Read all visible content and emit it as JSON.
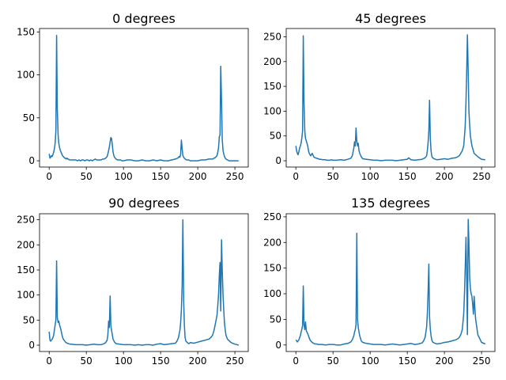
{
  "figure": {
    "background": "#ffffff",
    "line_color": "#1f77b4"
  },
  "chart_data": [
    {
      "type": "line",
      "title": "0 degrees",
      "xlim": [
        -13,
        268
      ],
      "ylim": [
        -7.3,
        154
      ],
      "xticks": [
        0,
        50,
        100,
        150,
        200,
        250
      ],
      "yticks": [
        0,
        50,
        100,
        150
      ],
      "series": [
        {
          "x": [
            0,
            1,
            2,
            3,
            4,
            5,
            6,
            7,
            8,
            9,
            10,
            11,
            12,
            13,
            14,
            15,
            16,
            17,
            18,
            19,
            20,
            21,
            22,
            23,
            24,
            25,
            26,
            27,
            28,
            29,
            30,
            32,
            34,
            36,
            38,
            40,
            42,
            44,
            46,
            48,
            50,
            52,
            54,
            56,
            58,
            60,
            62,
            64,
            66,
            68,
            70,
            72,
            74,
            76,
            78,
            79,
            80,
            81,
            82,
            83,
            84,
            85,
            86,
            87,
            88,
            89,
            90,
            92,
            94,
            96,
            98,
            100,
            105,
            110,
            115,
            120,
            125,
            130,
            135,
            140,
            145,
            150,
            155,
            160,
            165,
            170,
            173,
            175,
            176,
            177,
            178,
            179,
            180,
            181,
            182,
            183,
            185,
            188,
            190,
            195,
            200,
            205,
            210,
            215,
            218,
            220,
            222,
            224,
            226,
            227,
            228,
            229,
            230,
            231,
            232,
            233,
            234,
            235,
            236,
            237,
            238,
            240,
            242,
            245,
            250,
            255
          ],
          "y": [
            8,
            3,
            4,
            6,
            5,
            7,
            10,
            14,
            20,
            35,
            146,
            60,
            30,
            20,
            15,
            12,
            10,
            8,
            6,
            5,
            4,
            3,
            3,
            2,
            3,
            2,
            2,
            1,
            1,
            1,
            1,
            1,
            1,
            1,
            0,
            1,
            0,
            1,
            1,
            0,
            1,
            1,
            0,
            1,
            0,
            1,
            2,
            1,
            1,
            1,
            1,
            2,
            2,
            3,
            5,
            8,
            12,
            16,
            22,
            27,
            26,
            18,
            10,
            6,
            4,
            3,
            2,
            1,
            1,
            1,
            0,
            0,
            1,
            1,
            0,
            0,
            1,
            0,
            0,
            1,
            0,
            1,
            0,
            0,
            1,
            2,
            3,
            5,
            4,
            8,
            24,
            14,
            6,
            4,
            3,
            2,
            1,
            1,
            0,
            0,
            0,
            1,
            1,
            2,
            2,
            2,
            3,
            4,
            6,
            10,
            15,
            28,
            30,
            110,
            70,
            25,
            12,
            8,
            5,
            3,
            2,
            1,
            0,
            0,
            0,
            0
          ]
        }
      ]
    },
    {
      "type": "line",
      "title": "45 degrees",
      "xlim": [
        -13,
        268
      ],
      "ylim": [
        -12.7,
        266.7
      ],
      "xticks": [
        0,
        50,
        100,
        150,
        200,
        250
      ],
      "yticks": [
        0,
        50,
        100,
        150,
        200,
        250
      ],
      "series": [
        {
          "x": [
            0,
            1,
            2,
            3,
            4,
            5,
            6,
            7,
            8,
            9,
            10,
            11,
            12,
            13,
            14,
            15,
            16,
            17,
            18,
            19,
            20,
            22,
            24,
            26,
            28,
            30,
            32,
            34,
            36,
            38,
            40,
            42,
            44,
            46,
            48,
            50,
            55,
            60,
            65,
            70,
            74,
            76,
            78,
            79,
            80,
            81,
            82,
            83,
            84,
            85,
            86,
            88,
            90,
            95,
            100,
            105,
            110,
            115,
            120,
            125,
            130,
            135,
            140,
            145,
            150,
            152,
            155,
            160,
            165,
            170,
            174,
            176,
            177,
            178,
            179,
            180,
            181,
            182,
            183,
            184,
            186,
            188,
            190,
            195,
            200,
            205,
            210,
            215,
            218,
            220,
            222,
            224,
            226,
            227,
            228,
            229,
            230,
            231,
            232,
            233,
            234,
            235,
            236,
            237,
            238,
            240,
            245,
            250,
            255
          ],
          "y": [
            30,
            20,
            15,
            12,
            18,
            25,
            30,
            35,
            45,
            60,
            252,
            120,
            60,
            45,
            40,
            35,
            30,
            20,
            15,
            12,
            10,
            15,
            8,
            6,
            5,
            4,
            3,
            3,
            2,
            2,
            2,
            1,
            1,
            1,
            2,
            1,
            1,
            2,
            1,
            3,
            5,
            10,
            25,
            38,
            30,
            66,
            40,
            30,
            35,
            20,
            15,
            8,
            4,
            3,
            2,
            1,
            1,
            0,
            1,
            1,
            1,
            0,
            1,
            2,
            3,
            6,
            2,
            1,
            2,
            3,
            6,
            10,
            20,
            35,
            60,
            122,
            45,
            20,
            10,
            6,
            4,
            3,
            2,
            3,
            4,
            3,
            5,
            6,
            8,
            10,
            15,
            20,
            30,
            50,
            70,
            120,
            180,
            254,
            180,
            100,
            70,
            50,
            40,
            30,
            25,
            15,
            8,
            3,
            2
          ]
        }
      ]
    },
    {
      "type": "line",
      "title": "90 degrees",
      "xlim": [
        -13,
        268
      ],
      "ylim": [
        -12.6,
        262
      ],
      "xticks": [
        0,
        50,
        100,
        150,
        200,
        250
      ],
      "yticks": [
        0,
        50,
        100,
        150,
        200,
        250
      ],
      "series": [
        {
          "x": [
            0,
            1,
            2,
            3,
            4,
            5,
            6,
            7,
            8,
            9,
            10,
            11,
            12,
            13,
            14,
            15,
            16,
            17,
            18,
            19,
            20,
            22,
            24,
            26,
            28,
            30,
            35,
            40,
            45,
            50,
            55,
            60,
            65,
            70,
            72,
            74,
            76,
            78,
            79,
            80,
            81,
            82,
            83,
            84,
            85,
            86,
            88,
            90,
            95,
            100,
            105,
            110,
            115,
            120,
            125,
            130,
            135,
            140,
            145,
            150,
            155,
            160,
            165,
            170,
            172,
            174,
            176,
            177,
            178,
            179,
            180,
            181,
            182,
            183,
            184,
            186,
            188,
            190,
            195,
            200,
            205,
            210,
            215,
            218,
            220,
            222,
            224,
            226,
            227,
            228,
            229,
            230,
            231,
            232,
            233,
            234,
            235,
            236,
            237,
            238,
            240,
            245,
            250,
            255
          ],
          "y": [
            27,
            10,
            8,
            10,
            12,
            15,
            20,
            30,
            40,
            50,
            168,
            55,
            45,
            48,
            40,
            35,
            30,
            22,
            16,
            12,
            10,
            6,
            4,
            3,
            2,
            2,
            1,
            1,
            1,
            0,
            1,
            2,
            1,
            1,
            2,
            3,
            5,
            10,
            20,
            48,
            35,
            98,
            40,
            30,
            20,
            12,
            6,
            3,
            2,
            1,
            1,
            1,
            0,
            1,
            0,
            1,
            1,
            0,
            2,
            3,
            1,
            2,
            3,
            4,
            8,
            15,
            30,
            45,
            70,
            120,
            250,
            90,
            40,
            15,
            8,
            5,
            3,
            5,
            4,
            6,
            8,
            10,
            12,
            16,
            20,
            30,
            45,
            60,
            80,
            100,
            140,
            165,
            68,
            210,
            150,
            100,
            70,
            45,
            30,
            20,
            12,
            5,
            2,
            0
          ]
        }
      ]
    },
    {
      "type": "line",
      "title": "135 degrees",
      "xlim": [
        -13,
        268
      ],
      "ylim": [
        -12.7,
        256
      ],
      "xticks": [
        0,
        50,
        100,
        150,
        200,
        250
      ],
      "yticks": [
        0,
        50,
        100,
        150,
        200,
        250
      ],
      "series": [
        {
          "x": [
            0,
            1,
            2,
            3,
            4,
            5,
            6,
            7,
            8,
            9,
            10,
            11,
            12,
            13,
            14,
            15,
            16,
            17,
            18,
            19,
            20,
            22,
            24,
            26,
            28,
            30,
            35,
            40,
            45,
            50,
            55,
            60,
            65,
            70,
            74,
            76,
            78,
            79,
            80,
            81,
            82,
            83,
            84,
            85,
            86,
            88,
            90,
            95,
            100,
            105,
            110,
            115,
            120,
            125,
            130,
            135,
            140,
            145,
            150,
            155,
            160,
            165,
            170,
            172,
            174,
            176,
            177,
            178,
            179,
            180,
            181,
            182,
            183,
            184,
            186,
            188,
            190,
            195,
            200,
            205,
            210,
            215,
            218,
            220,
            222,
            224,
            225,
            226,
            227,
            228,
            229,
            230,
            231,
            232,
            233,
            234,
            235,
            236,
            237,
            238,
            239,
            240,
            242,
            245,
            250,
            255
          ],
          "y": [
            10,
            8,
            6,
            8,
            10,
            14,
            18,
            25,
            30,
            38,
            115,
            40,
            30,
            45,
            28,
            25,
            22,
            18,
            14,
            10,
            8,
            5,
            3,
            2,
            2,
            1,
            1,
            0,
            1,
            1,
            0,
            0,
            2,
            3,
            6,
            10,
            18,
            25,
            30,
            40,
            218,
            50,
            35,
            25,
            18,
            8,
            5,
            3,
            2,
            1,
            1,
            1,
            0,
            1,
            2,
            1,
            0,
            1,
            2,
            3,
            1,
            2,
            4,
            8,
            15,
            35,
            60,
            100,
            158,
            55,
            30,
            18,
            10,
            6,
            4,
            3,
            2,
            3,
            5,
            6,
            8,
            10,
            12,
            15,
            20,
            30,
            45,
            60,
            100,
            150,
            210,
            130,
            20,
            245,
            200,
            130,
            110,
            100,
            95,
            80,
            60,
            95,
            50,
            20,
            5,
            2
          ]
        }
      ]
    }
  ]
}
